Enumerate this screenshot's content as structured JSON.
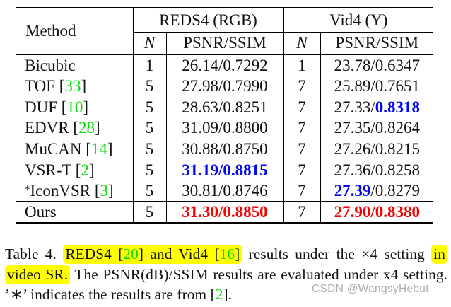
{
  "colors": {
    "accent_blue": "#0008f0",
    "accent_red": "#f70000",
    "cite_green": "#00dd00",
    "highlight_yellow": "#ffff00",
    "watermark_gray": "#a9aeb4"
  },
  "table": {
    "method_header": "Method",
    "groups": [
      "REDS4 (RGB)",
      "Vid4 (Y)"
    ],
    "sub_n": "N",
    "sub_psnr": "PSNR/SSIM",
    "rows": [
      {
        "method": [
          {
            "t": "Bicubic"
          }
        ],
        "n1": "1",
        "v1": [
          {
            "t": "26.14/0.7292"
          }
        ],
        "n2": "1",
        "v2": [
          {
            "t": "23.78/0.6347"
          }
        ]
      },
      {
        "method": [
          {
            "t": "TOF ["
          },
          {
            "t": "33",
            "c": "green"
          },
          {
            "t": "]"
          }
        ],
        "n1": "5",
        "v1": [
          {
            "t": "27.98/0.7990"
          }
        ],
        "n2": "7",
        "v2": [
          {
            "t": "25.89/0.7651"
          }
        ]
      },
      {
        "method": [
          {
            "t": "DUF ["
          },
          {
            "t": "10",
            "c": "green"
          },
          {
            "t": "]"
          }
        ],
        "n1": "5",
        "v1": [
          {
            "t": "28.63/0.8251"
          }
        ],
        "n2": "7",
        "v2": [
          {
            "t": "27.33/"
          },
          {
            "t": "0.8318",
            "c": "blue"
          }
        ]
      },
      {
        "method": [
          {
            "t": "EDVR ["
          },
          {
            "t": "28",
            "c": "green"
          },
          {
            "t": "]"
          }
        ],
        "n1": "5",
        "v1": [
          {
            "t": "31.09/0.8800"
          }
        ],
        "n2": "7",
        "v2": [
          {
            "t": "27.35/0.8264"
          }
        ]
      },
      {
        "method": [
          {
            "t": "MuCAN ["
          },
          {
            "t": "14",
            "c": "green"
          },
          {
            "t": "]"
          }
        ],
        "n1": "5",
        "v1": [
          {
            "t": "30.88/0.8750"
          }
        ],
        "n2": "7",
        "v2": [
          {
            "t": "27.26/0.8215"
          }
        ]
      },
      {
        "method": [
          {
            "t": "VSR-T ["
          },
          {
            "t": "2",
            "c": "green"
          },
          {
            "t": "]"
          }
        ],
        "n1": "5",
        "v1": [
          {
            "t": "31.19/0.8815",
            "c": "blue"
          }
        ],
        "n2": "7",
        "v2": [
          {
            "t": "27.36/0.8258"
          }
        ]
      },
      {
        "method": [
          {
            "t": "*",
            "c": "sup"
          },
          {
            "t": "IconVSR ["
          },
          {
            "t": "3",
            "c": "green"
          },
          {
            "t": "]"
          }
        ],
        "n1": "5",
        "v1": [
          {
            "t": "30.81/0.8746"
          }
        ],
        "n2": "7",
        "v2": [
          {
            "t": "27.39",
            "c": "blue"
          },
          {
            "t": "/0.8279"
          }
        ]
      },
      {
        "method": [
          {
            "t": "Ours"
          }
        ],
        "ours": true,
        "n1": "5",
        "v1": [
          {
            "t": "31.30/0.8850",
            "c": "red"
          }
        ],
        "n2": "7",
        "v2": [
          {
            "t": "27.90/0.8380",
            "c": "red"
          }
        ]
      }
    ]
  },
  "caption": {
    "runs": [
      {
        "h": false,
        "parts": [
          {
            "t": "Table 4. "
          }
        ]
      },
      {
        "h": true,
        "parts": [
          {
            "t": "REDS4 ["
          },
          {
            "t": "20",
            "c": "green"
          },
          {
            "t": "] and Vid4 ["
          },
          {
            "t": "16",
            "c": "green"
          },
          {
            "t": "]"
          }
        ]
      },
      {
        "h": false,
        "parts": [
          {
            "t": " results under the ×4 setting "
          }
        ]
      },
      {
        "h": true,
        "parts": [
          {
            "t": "in video SR."
          }
        ]
      },
      {
        "h": false,
        "parts": [
          {
            "t": " The PSNR(dB)/SSIM results are evaluated under x4 setting. ’∗’ indicates the results are from ["
          },
          {
            "t": "2",
            "c": "green"
          },
          {
            "t": "]."
          }
        ]
      }
    ]
  },
  "watermark": "CSDN @WangsyHebut"
}
